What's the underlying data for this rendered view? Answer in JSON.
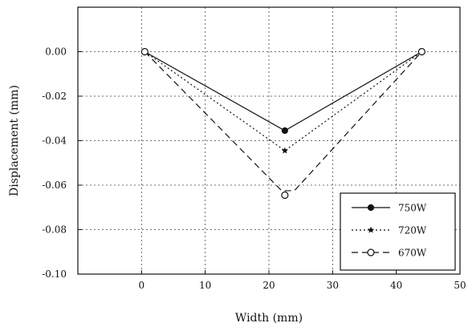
{
  "chart_data": {
    "type": "line",
    "title": "",
    "xlabel": "Width (mm)",
    "ylabel": "Displacement (mm)",
    "xlim": [
      -10,
      50
    ],
    "ylim": [
      -0.1,
      0.02
    ],
    "x_ticks": [
      0,
      10,
      20,
      30,
      40,
      50
    ],
    "x_tick_labels": [
      "0",
      "10",
      "20",
      "30",
      "40",
      "50"
    ],
    "y_ticks": [
      0.0,
      -0.02,
      -0.04,
      -0.06,
      -0.08,
      -0.1
    ],
    "y_tick_labels": [
      "0.00",
      "-0.02",
      "-0.04",
      "-0.06",
      "-0.08",
      "-0.10"
    ],
    "grid": true,
    "legend_position": "bottom-right",
    "series": [
      {
        "name": "750W",
        "x": [
          0.5,
          22.5,
          44.0
        ],
        "y": [
          0.0,
          -0.0355,
          0.0
        ],
        "line": "solid",
        "marker": "filled-circle",
        "color": "#111111"
      },
      {
        "name": "720W",
        "x": [
          0.5,
          22.5,
          44.0
        ],
        "y": [
          0.0,
          -0.0445,
          0.0
        ],
        "line": "dotted",
        "marker": "star",
        "color": "#111111"
      },
      {
        "name": "670W",
        "x": [
          0.5,
          22.5,
          44.0
        ],
        "y": [
          0.0,
          -0.0645,
          0.0
        ],
        "path_x": [
          0.5,
          22.0,
          24.0,
          44.0
        ],
        "path_y": [
          0.0,
          -0.0625,
          -0.0625,
          0.0
        ],
        "line": "dashed",
        "marker": "open-circle",
        "color": "#111111"
      }
    ]
  }
}
